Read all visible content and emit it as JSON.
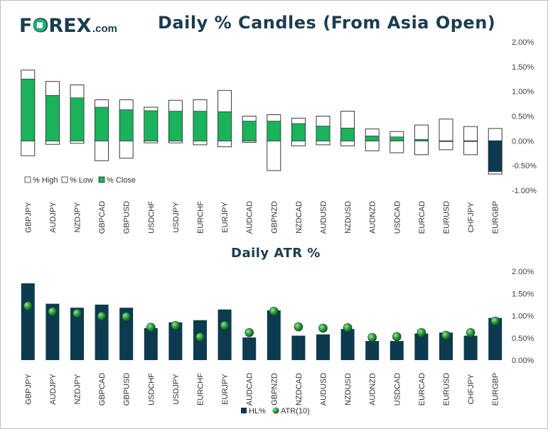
{
  "logo": {
    "brand": "FOREX",
    "suffix": ".com"
  },
  "colors": {
    "brand_teal": "#1fb57a",
    "brand_dark": "#1b3d4f",
    "close_up": "#1ab25a",
    "close_down": "#0d3a4f",
    "bar": "#0d3a4f",
    "atr_dot": "#2e9e3e"
  },
  "chart_data": [
    {
      "type": "bar",
      "title": "Daily % Candles (From Asia Open)",
      "categories": [
        "GBPJPY",
        "AUDJPY",
        "NZDJPY",
        "GBPCAD",
        "GBPUSD",
        "USDCHF",
        "USDJPY",
        "EURCHF",
        "EURJPY",
        "AUDCAD",
        "GBPNZD",
        "NZDCAD",
        "AUDUSD",
        "NZDUSD",
        "AUDNZD",
        "USDCAD",
        "EURCAD",
        "EURUSD",
        "CHFJPY",
        "EURGBP"
      ],
      "series": [
        {
          "name": "% High",
          "values": [
            1.43,
            1.2,
            1.13,
            0.83,
            0.83,
            0.68,
            0.82,
            0.83,
            1.02,
            0.5,
            0.53,
            0.46,
            0.5,
            0.6,
            0.24,
            0.19,
            0.32,
            0.44,
            0.29,
            0.25
          ]
        },
        {
          "name": "% Low",
          "values": [
            -0.3,
            -0.07,
            -0.05,
            -0.4,
            -0.35,
            -0.04,
            -0.04,
            -0.08,
            -0.12,
            -0.03,
            -0.6,
            -0.1,
            -0.08,
            -0.1,
            -0.2,
            -0.24,
            -0.28,
            -0.18,
            -0.28,
            -0.67
          ]
        },
        {
          "name": "% Close",
          "values": [
            1.25,
            0.92,
            0.87,
            0.68,
            0.63,
            0.61,
            0.6,
            0.6,
            0.59,
            0.4,
            0.4,
            0.35,
            0.3,
            0.26,
            0.1,
            0.08,
            0.03,
            0.0,
            0.0,
            -0.62
          ]
        }
      ],
      "ylim": [
        -1.0,
        2.0
      ],
      "yticks": [
        "2.00%",
        "1.50%",
        "1.00%",
        "0.50%",
        "0.00%",
        "-0.50%",
        "-1.00%"
      ],
      "legend": [
        "% High",
        "% Low",
        "% Close"
      ],
      "legend_position": "bottom-left"
    },
    {
      "type": "bar",
      "title": "Daily ATR %",
      "categories": [
        "GBPJPY",
        "AUDJPY",
        "NZDJPY",
        "GBPCAD",
        "GBPUSD",
        "USDCHF",
        "USDJPY",
        "EURCHF",
        "EURJPY",
        "AUDCAD",
        "GBPNZD",
        "NZDCAD",
        "AUDUSD",
        "NZDUSD",
        "AUDNZD",
        "USDCAD",
        "EURCAD",
        "EURUSD",
        "CHFJPY",
        "EURGBP"
      ],
      "series": [
        {
          "name": "HL%",
          "type": "bar",
          "values": [
            1.73,
            1.27,
            1.18,
            1.25,
            1.18,
            0.72,
            0.85,
            0.9,
            1.14,
            0.51,
            1.12,
            0.55,
            0.58,
            0.7,
            0.43,
            0.43,
            0.6,
            0.62,
            0.55,
            0.95
          ]
        },
        {
          "name": "ATR(10)",
          "type": "scatter",
          "values": [
            1.22,
            1.09,
            1.05,
            0.99,
            0.98,
            0.74,
            0.78,
            0.52,
            0.78,
            0.62,
            1.1,
            0.75,
            0.72,
            0.73,
            0.51,
            0.53,
            0.62,
            0.56,
            0.62,
            0.88
          ]
        }
      ],
      "ylim": [
        0.0,
        2.0
      ],
      "yticks": [
        "2.00%",
        "1.50%",
        "1.00%",
        "0.50%",
        "0.00%"
      ],
      "legend": [
        "HL%",
        "ATR(10)"
      ],
      "legend_position": "bottom-center"
    }
  ]
}
